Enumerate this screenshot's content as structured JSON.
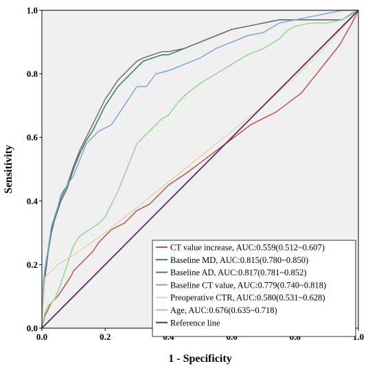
{
  "chart_data": {
    "type": "line",
    "xlabel": "1 - Specificity",
    "ylabel": "Sensitivity",
    "xlim": [
      0,
      1
    ],
    "ylim": [
      0,
      1
    ],
    "x_ticks": [
      "0.0",
      "0.2",
      "0.4",
      "0.6",
      "0.8",
      "1.0"
    ],
    "y_ticks": [
      "0.0",
      "0.2",
      "0.4",
      "0.6",
      "0.8",
      "1.0"
    ],
    "grid": false,
    "plot_background": "#f0f0f0",
    "legend_position": "bottom-right",
    "series": [
      {
        "name": "CT value increase, AUC:0.559(0.512~0.607)",
        "color": "#c0504d",
        "x": [
          0,
          0.01,
          0.02,
          0.03,
          0.05,
          0.07,
          0.09,
          0.1,
          0.12,
          0.14,
          0.16,
          0.18,
          0.2,
          0.22,
          0.24,
          0.26,
          0.28,
          0.3,
          0.32,
          0.34,
          0.36,
          0.38,
          0.4,
          0.43,
          0.46,
          0.5,
          0.54,
          0.58,
          0.62,
          0.66,
          0.7,
          0.74,
          0.78,
          0.82,
          0.86,
          0.9,
          0.94,
          0.98,
          1.0
        ],
        "y": [
          0,
          0.04,
          0.06,
          0.08,
          0.1,
          0.13,
          0.16,
          0.18,
          0.2,
          0.22,
          0.24,
          0.27,
          0.29,
          0.31,
          0.32,
          0.33,
          0.35,
          0.37,
          0.38,
          0.39,
          0.41,
          0.43,
          0.45,
          0.47,
          0.49,
          0.52,
          0.55,
          0.58,
          0.61,
          0.64,
          0.66,
          0.68,
          0.71,
          0.74,
          0.79,
          0.84,
          0.89,
          0.96,
          1.0
        ]
      },
      {
        "name": "Baseline MD, AUC:0.815(0.780~0.850)",
        "color": "#2e7d4f",
        "x": [
          0,
          0.005,
          0.01,
          0.02,
          0.03,
          0.04,
          0.05,
          0.06,
          0.08,
          0.1,
          0.12,
          0.14,
          0.16,
          0.18,
          0.2,
          0.22,
          0.24,
          0.26,
          0.28,
          0.3,
          0.32,
          0.35,
          0.38,
          0.4,
          0.45,
          0.5,
          0.55,
          0.6,
          0.65,
          0.7,
          0.75,
          0.8,
          0.85,
          0.9,
          0.95,
          0.98,
          1.0
        ],
        "y": [
          0,
          0.12,
          0.16,
          0.24,
          0.3,
          0.34,
          0.37,
          0.4,
          0.44,
          0.5,
          0.55,
          0.59,
          0.62,
          0.66,
          0.7,
          0.73,
          0.76,
          0.78,
          0.8,
          0.82,
          0.84,
          0.85,
          0.86,
          0.86,
          0.88,
          0.9,
          0.92,
          0.94,
          0.95,
          0.96,
          0.97,
          0.97,
          0.97,
          0.97,
          0.97,
          0.99,
          1.0
        ]
      },
      {
        "name": "Baseline AD, AUC:0.817(0.781~0.852)",
        "color": "#6e6e6e",
        "x": [
          0,
          0.005,
          0.01,
          0.02,
          0.03,
          0.04,
          0.05,
          0.06,
          0.08,
          0.1,
          0.12,
          0.14,
          0.16,
          0.18,
          0.2,
          0.22,
          0.24,
          0.26,
          0.28,
          0.3,
          0.32,
          0.35,
          0.38,
          0.4,
          0.45,
          0.5,
          0.55,
          0.6,
          0.65,
          0.7,
          0.75,
          0.8,
          0.85,
          0.9,
          0.95,
          0.98,
          1.0
        ],
        "y": [
          0,
          0.13,
          0.17,
          0.25,
          0.31,
          0.35,
          0.38,
          0.41,
          0.45,
          0.51,
          0.56,
          0.6,
          0.64,
          0.68,
          0.72,
          0.75,
          0.78,
          0.8,
          0.82,
          0.84,
          0.85,
          0.86,
          0.87,
          0.87,
          0.88,
          0.9,
          0.92,
          0.94,
          0.95,
          0.96,
          0.97,
          0.97,
          0.97,
          0.97,
          0.97,
          0.99,
          1.0
        ]
      },
      {
        "name": "Baseline CT value, AUC:0.779(0.740~0.818)",
        "color": "#7ca6d4",
        "x": [
          0,
          0.005,
          0.01,
          0.02,
          0.03,
          0.04,
          0.05,
          0.06,
          0.08,
          0.1,
          0.12,
          0.14,
          0.16,
          0.18,
          0.2,
          0.22,
          0.24,
          0.26,
          0.28,
          0.3,
          0.33,
          0.36,
          0.4,
          0.45,
          0.5,
          0.55,
          0.6,
          0.65,
          0.7,
          0.75,
          0.8,
          0.85,
          0.9,
          0.95,
          1.0
        ],
        "y": [
          0,
          0.15,
          0.19,
          0.25,
          0.32,
          0.35,
          0.38,
          0.42,
          0.45,
          0.48,
          0.53,
          0.58,
          0.6,
          0.62,
          0.63,
          0.64,
          0.67,
          0.7,
          0.73,
          0.76,
          0.76,
          0.8,
          0.81,
          0.83,
          0.85,
          0.88,
          0.9,
          0.92,
          0.93,
          0.96,
          0.97,
          0.98,
          0.99,
          1.0,
          1.0
        ]
      },
      {
        "name": "Preoperative CTR, AUC:0.580(0.531~0.628)",
        "color": "#e3d6a8",
        "x": [
          0,
          0.01,
          0.03,
          0.05,
          0.1,
          0.2,
          0.3,
          0.4,
          0.5,
          0.6,
          0.7,
          0.8,
          0.9,
          1.0
        ],
        "y": [
          0,
          0.16,
          0.18,
          0.2,
          0.23,
          0.3,
          0.38,
          0.46,
          0.54,
          0.62,
          0.7,
          0.79,
          0.89,
          1.0
        ]
      },
      {
        "name": "Age, AUC:0.676(0.635~0.718)",
        "color": "#8fd68f",
        "x": [
          0,
          0.01,
          0.02,
          0.04,
          0.06,
          0.08,
          0.1,
          0.12,
          0.15,
          0.18,
          0.2,
          0.22,
          0.24,
          0.26,
          0.28,
          0.3,
          0.32,
          0.35,
          0.38,
          0.4,
          0.43,
          0.46,
          0.5,
          0.55,
          0.6,
          0.65,
          0.7,
          0.75,
          0.78,
          0.8,
          0.85,
          0.9,
          0.95,
          1.0
        ],
        "y": [
          0,
          0.05,
          0.07,
          0.09,
          0.14,
          0.2,
          0.26,
          0.29,
          0.31,
          0.33,
          0.35,
          0.39,
          0.43,
          0.48,
          0.53,
          0.58,
          0.6,
          0.63,
          0.66,
          0.67,
          0.71,
          0.74,
          0.77,
          0.8,
          0.83,
          0.86,
          0.88,
          0.91,
          0.94,
          0.95,
          0.96,
          0.96,
          0.97,
          1.0
        ]
      },
      {
        "name": "Reference line",
        "color": "#5c2a63",
        "x": [
          0,
          1
        ],
        "y": [
          0,
          1
        ]
      }
    ]
  }
}
